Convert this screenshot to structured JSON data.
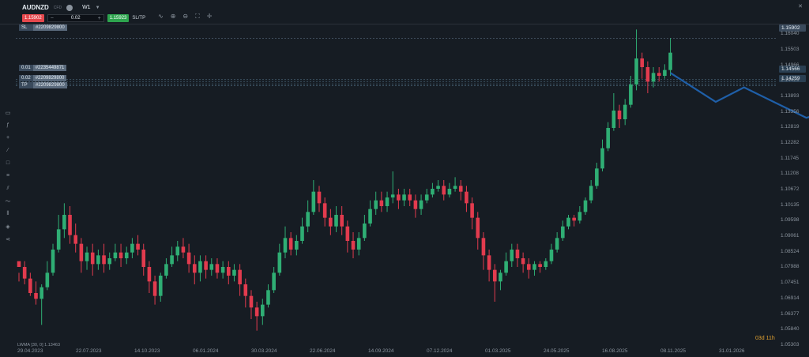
{
  "header": {
    "symbol": "AUDNZD",
    "symbol_sub": "CFD",
    "timeframe": "W1",
    "sell_price": "1.15902",
    "buy_price": "1.15923",
    "quantity": "0.02",
    "minus": "−",
    "plus": "+",
    "sltp_label": "SL/TP"
  },
  "orders": {
    "sl_tag": "SL",
    "sl_id": "#2209829800",
    "o1_qty": "0.01",
    "o1_id": "#2235449871",
    "o2_qty": "0.02",
    "o2_id": "#2209829800",
    "tp_tag": "TP",
    "tp_id": "#2209829800"
  },
  "price_labels": {
    "current": "1.15902",
    "l1": "1.14566",
    "l2": "1.14259"
  },
  "indicator": "LWMA [30, 0] 1.13463",
  "timer": "03d 11h",
  "accent_colors": {
    "bull": "#2fae74",
    "bear": "#e23b4e",
    "forecast": "#1f5fa8"
  },
  "chart_data": {
    "type": "candlestick",
    "ylim": [
      1.053,
      1.164
    ],
    "yticks": [
      "1.16040",
      "1.15503",
      "1.14966",
      "1.14429",
      "1.13893",
      "1.13356",
      "1.12819",
      "1.12282",
      "1.11745",
      "1.11208",
      "1.10672",
      "1.10135",
      "1.09598",
      "1.09061",
      "1.08524",
      "1.07988",
      "1.07451",
      "1.06914",
      "1.06377",
      "1.05840",
      "1.05303"
    ],
    "xticks": [
      "29.04.2023",
      "22.07.2023",
      "14.10.2023",
      "06.01.2024",
      "30.03.2024",
      "22.06.2024",
      "14.09.2024",
      "07.12.2024",
      "01.03.2025",
      "24.05.2025",
      "16.08.2025",
      "08.11.2025",
      "31.01.2026"
    ],
    "candles": [
      [
        1.082,
        1.08,
        1.078,
        1.075
      ],
      [
        1.08,
        1.076,
        1.082,
        1.074
      ],
      [
        1.076,
        1.071,
        1.078,
        1.07
      ],
      [
        1.071,
        1.069,
        1.075,
        1.067
      ],
      [
        1.069,
        1.073,
        1.074,
        1.06
      ],
      [
        1.073,
        1.078,
        1.082,
        1.072
      ],
      [
        1.078,
        1.086,
        1.088,
        1.077
      ],
      [
        1.086,
        1.093,
        1.098,
        1.085
      ],
      [
        1.093,
        1.098,
        1.102,
        1.09
      ],
      [
        1.098,
        1.091,
        1.101,
        1.088
      ],
      [
        1.091,
        1.088,
        1.095,
        1.085
      ],
      [
        1.088,
        1.082,
        1.09,
        1.078
      ],
      [
        1.082,
        1.085,
        1.087,
        1.079
      ],
      [
        1.085,
        1.081,
        1.088,
        1.077
      ],
      [
        1.081,
        1.084,
        1.086,
        1.079
      ],
      [
        1.084,
        1.081,
        1.088,
        1.078
      ],
      [
        1.081,
        1.083,
        1.085,
        1.079
      ],
      [
        1.083,
        1.085,
        1.088,
        1.082
      ],
      [
        1.085,
        1.083,
        1.088,
        1.08
      ],
      [
        1.083,
        1.085,
        1.087,
        1.081
      ],
      [
        1.085,
        1.088,
        1.09,
        1.083
      ],
      [
        1.088,
        1.086,
        1.091,
        1.084
      ],
      [
        1.086,
        1.08,
        1.088,
        1.077
      ],
      [
        1.08,
        1.075,
        1.082,
        1.071
      ],
      [
        1.075,
        1.07,
        1.077,
        1.067
      ],
      [
        1.07,
        1.077,
        1.078,
        1.068
      ],
      [
        1.077,
        1.081,
        1.083,
        1.076
      ],
      [
        1.081,
        1.084,
        1.087,
        1.08
      ],
      [
        1.084,
        1.087,
        1.089,
        1.082
      ],
      [
        1.087,
        1.085,
        1.09,
        1.083
      ],
      [
        1.085,
        1.081,
        1.088,
        1.078
      ],
      [
        1.081,
        1.078,
        1.084,
        1.074
      ],
      [
        1.078,
        1.082,
        1.084,
        1.075
      ],
      [
        1.082,
        1.079,
        1.084,
        1.076
      ],
      [
        1.079,
        1.081,
        1.083,
        1.077
      ],
      [
        1.081,
        1.078,
        1.083,
        1.076
      ],
      [
        1.078,
        1.08,
        1.082,
        1.076
      ],
      [
        1.08,
        1.077,
        1.082,
        1.074
      ],
      [
        1.077,
        1.079,
        1.081,
        1.075
      ],
      [
        1.079,
        1.074,
        1.081,
        1.07
      ],
      [
        1.074,
        1.07,
        1.076,
        1.066
      ],
      [
        1.07,
        1.066,
        1.072,
        1.062
      ],
      [
        1.066,
        1.063,
        1.068,
        1.058
      ],
      [
        1.063,
        1.067,
        1.069,
        1.06
      ],
      [
        1.067,
        1.072,
        1.074,
        1.066
      ],
      [
        1.072,
        1.078,
        1.08,
        1.071
      ],
      [
        1.078,
        1.085,
        1.088,
        1.077
      ],
      [
        1.085,
        1.09,
        1.094,
        1.083
      ],
      [
        1.09,
        1.086,
        1.092,
        1.084
      ],
      [
        1.086,
        1.089,
        1.091,
        1.084
      ],
      [
        1.089,
        1.094,
        1.097,
        1.088
      ],
      [
        1.094,
        1.099,
        1.103,
        1.092
      ],
      [
        1.099,
        1.106,
        1.11,
        1.098
      ],
      [
        1.106,
        1.102,
        1.108,
        1.099
      ],
      [
        1.102,
        1.097,
        1.104,
        1.094
      ],
      [
        1.097,
        1.094,
        1.1,
        1.091
      ],
      [
        1.094,
        1.098,
        1.101,
        1.092
      ],
      [
        1.098,
        1.094,
        1.101,
        1.091
      ],
      [
        1.094,
        1.089,
        1.096,
        1.085
      ],
      [
        1.089,
        1.086,
        1.092,
        1.083
      ],
      [
        1.086,
        1.09,
        1.092,
        1.084
      ],
      [
        1.09,
        1.095,
        1.098,
        1.089
      ],
      [
        1.095,
        1.1,
        1.103,
        1.094
      ],
      [
        1.1,
        1.103,
        1.106,
        1.098
      ],
      [
        1.103,
        1.101,
        1.106,
        1.099
      ],
      [
        1.101,
        1.104,
        1.106,
        1.099
      ],
      [
        1.104,
        1.105,
        1.113,
        1.102
      ],
      [
        1.105,
        1.103,
        1.107,
        1.1
      ],
      [
        1.103,
        1.105,
        1.107,
        1.101
      ],
      [
        1.105,
        1.103,
        1.107,
        1.101
      ],
      [
        1.103,
        1.1,
        1.105,
        1.097
      ],
      [
        1.1,
        1.103,
        1.105,
        1.098
      ],
      [
        1.103,
        1.105,
        1.107,
        1.102
      ],
      [
        1.105,
        1.107,
        1.109,
        1.104
      ],
      [
        1.107,
        1.108,
        1.11,
        1.106
      ],
      [
        1.108,
        1.105,
        1.11,
        1.103
      ],
      [
        1.105,
        1.107,
        1.109,
        1.104
      ],
      [
        1.107,
        1.108,
        1.111,
        1.106
      ],
      [
        1.108,
        1.106,
        1.11,
        1.103
      ],
      [
        1.106,
        1.102,
        1.108,
        1.099
      ],
      [
        1.102,
        1.097,
        1.104,
        1.093
      ],
      [
        1.097,
        1.09,
        1.099,
        1.086
      ],
      [
        1.09,
        1.084,
        1.092,
        1.079
      ],
      [
        1.084,
        1.079,
        1.086,
        1.075
      ],
      [
        1.079,
        1.075,
        1.081,
        1.068
      ],
      [
        1.075,
        1.078,
        1.079,
        1.072
      ],
      [
        1.078,
        1.082,
        1.085,
        1.077
      ],
      [
        1.082,
        1.086,
        1.088,
        1.08
      ],
      [
        1.086,
        1.083,
        1.088,
        1.08
      ],
      [
        1.083,
        1.081,
        1.085,
        1.078
      ],
      [
        1.081,
        1.079,
        1.083,
        1.076
      ],
      [
        1.079,
        1.081,
        1.082,
        1.077
      ],
      [
        1.081,
        1.08,
        1.082,
        1.078
      ],
      [
        1.08,
        1.082,
        1.083,
        1.079
      ],
      [
        1.082,
        1.086,
        1.088,
        1.081
      ],
      [
        1.086,
        1.09,
        1.092,
        1.085
      ],
      [
        1.09,
        1.094,
        1.096,
        1.089
      ],
      [
        1.094,
        1.097,
        1.098,
        1.093
      ],
      [
        1.097,
        1.096,
        1.098,
        1.094
      ],
      [
        1.096,
        1.099,
        1.101,
        1.095
      ],
      [
        1.099,
        1.103,
        1.104,
        1.098
      ],
      [
        1.103,
        1.108,
        1.11,
        1.102
      ],
      [
        1.108,
        1.114,
        1.116,
        1.107
      ],
      [
        1.114,
        1.121,
        1.124,
        1.113
      ],
      [
        1.121,
        1.128,
        1.13,
        1.12
      ],
      [
        1.128,
        1.134,
        1.14,
        1.127
      ],
      [
        1.134,
        1.131,
        1.136,
        1.128
      ],
      [
        1.131,
        1.136,
        1.138,
        1.129
      ],
      [
        1.136,
        1.143,
        1.146,
        1.135
      ],
      [
        1.143,
        1.152,
        1.162,
        1.141
      ],
      [
        1.152,
        1.149,
        1.154,
        1.145
      ],
      [
        1.149,
        1.144,
        1.151,
        1.14
      ],
      [
        1.144,
        1.147,
        1.149,
        1.142
      ],
      [
        1.147,
        1.146,
        1.149,
        1.144
      ],
      [
        1.146,
        1.148,
        1.15,
        1.145
      ],
      [
        1.148,
        1.154,
        1.159,
        1.146
      ]
    ],
    "forecast": [
      [
        1.147,
        0
      ],
      [
        1.137,
        8
      ],
      [
        1.142,
        13
      ],
      [
        1.1315,
        24
      ],
      [
        1.1345,
        29
      ],
      [
        1.1195,
        38
      ]
    ]
  }
}
